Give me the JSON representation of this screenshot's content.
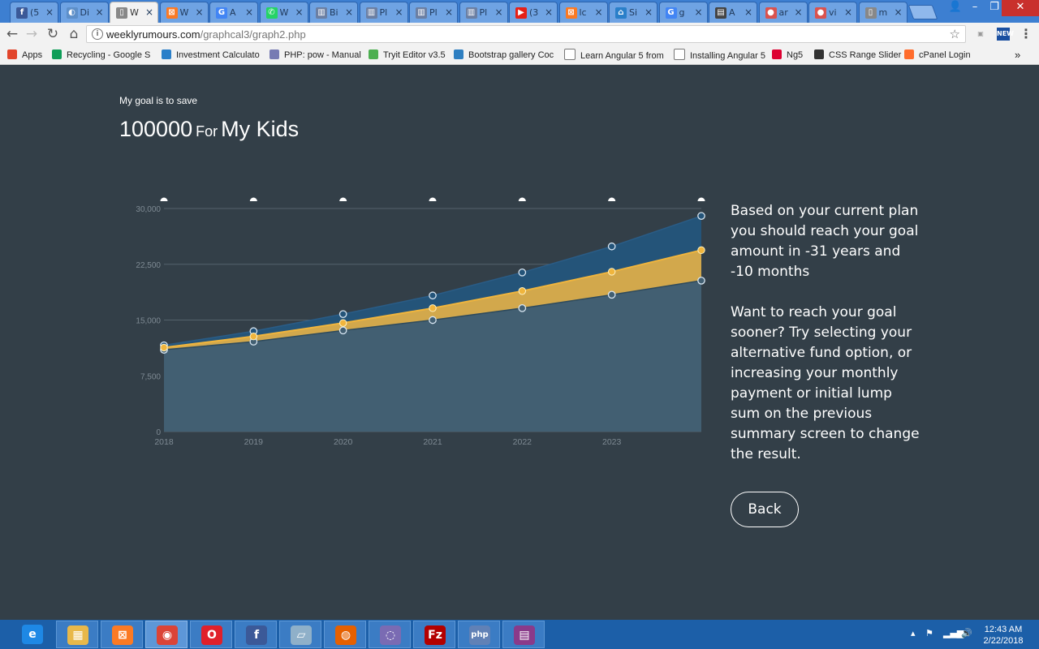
{
  "browser": {
    "tabs": [
      {
        "icon": "facebook-icon",
        "title": "(5",
        "color": "#3b5998",
        "glyph": "f"
      },
      {
        "icon": "globe-icon",
        "title": "Di",
        "color": "#5d8fc9",
        "glyph": "◐"
      },
      {
        "icon": "document-icon",
        "title": "W",
        "color": "#888888",
        "glyph": "▯",
        "active": true
      },
      {
        "icon": "xampp-icon",
        "title": "W",
        "color": "#fb7a24",
        "glyph": "⊠"
      },
      {
        "icon": "google-icon",
        "title": "A",
        "color": "#4285f4",
        "glyph": "G"
      },
      {
        "icon": "whatsapp-icon",
        "title": "W",
        "color": "#25d366",
        "glyph": "✆"
      },
      {
        "icon": "chart-icon",
        "title": "Bi",
        "color": "#6b7fa3",
        "glyph": "▥"
      },
      {
        "icon": "chart-icon",
        "title": "Pl",
        "color": "#6b7fa3",
        "glyph": "▥"
      },
      {
        "icon": "chart-icon",
        "title": "Pl",
        "color": "#6b7fa3",
        "glyph": "▥"
      },
      {
        "icon": "chart-icon",
        "title": "Pl",
        "color": "#6b7fa3",
        "glyph": "▥"
      },
      {
        "icon": "youtube-icon",
        "title": "(3",
        "color": "#e62117",
        "glyph": "▶"
      },
      {
        "icon": "xampp-icon",
        "title": "lc",
        "color": "#fb7a24",
        "glyph": "⊠"
      },
      {
        "icon": "home-icon",
        "title": "Si",
        "color": "#2a7fc9",
        "glyph": "⌂"
      },
      {
        "icon": "google-icon",
        "title": "g",
        "color": "#4285f4",
        "glyph": "G"
      },
      {
        "icon": "book-icon",
        "title": "A",
        "color": "#444444",
        "glyph": "▤"
      },
      {
        "icon": "circle-icon",
        "title": "ar",
        "color": "#d9534f",
        "glyph": "●"
      },
      {
        "icon": "circle-icon",
        "title": "vi",
        "color": "#d9534f",
        "glyph": "●"
      },
      {
        "icon": "document-icon",
        "title": "m",
        "color": "#888888",
        "glyph": "▯"
      }
    ],
    "url_host": "weeklyrumours.com",
    "url_path": "/graphcal3/graph2.php",
    "bookmarks": [
      {
        "label": "Apps",
        "icon": "apps-icon",
        "color": "#e2452b"
      },
      {
        "label": "Recycling - Google S",
        "icon": "sheets-icon",
        "color": "#0f9d58"
      },
      {
        "label": "Investment Calculato",
        "icon": "home-icon",
        "color": "#2a7fc9"
      },
      {
        "label": "PHP: pow - Manual",
        "icon": "php-icon",
        "color": "#777bb3"
      },
      {
        "label": "Tryit Editor v3.5",
        "icon": "w3-icon",
        "color": "#4caf50"
      },
      {
        "label": "Bootstrap gallery Coc",
        "icon": "bootstrap-icon",
        "color": "#2f7fc1"
      },
      {
        "label": "Learn Angular 5 from",
        "icon": "document-icon",
        "color": "#ffffff"
      },
      {
        "label": "Installing Angular 5",
        "icon": "document-icon",
        "color": "#ffffff"
      },
      {
        "label": "Ng5",
        "icon": "angular-icon",
        "color": "#dd0031"
      },
      {
        "label": "CSS Range Slider",
        "icon": "codepen-icon",
        "color": "#333333"
      },
      {
        "label": "cPanel Login",
        "icon": "cpanel-icon",
        "color": "#ff6c2c"
      }
    ],
    "bookmarks_overflow": "»"
  },
  "goal": {
    "intro": "My goal is to save",
    "amount": "100000",
    "for_word": "For",
    "name": "My Kids"
  },
  "chart_data": {
    "type": "area",
    "x": [
      "2018",
      "2019",
      "2020",
      "2021",
      "2022",
      "2023",
      "2024"
    ],
    "x_tick_labels": [
      "2018",
      "2019",
      "2020",
      "2021",
      "2022",
      "2023"
    ],
    "y_ticks": [
      0,
      7500,
      15000,
      22500,
      30000
    ],
    "y_tick_labels": [
      "0",
      "7,500",
      "15,000",
      "22,500",
      "30,000"
    ],
    "ylim": [
      0,
      30000
    ],
    "title": "",
    "xlabel": "",
    "ylabel": "",
    "series": [
      {
        "color": "#245479",
        "values": [
          11600,
          13500,
          15800,
          18300,
          21400,
          24900,
          29000
        ]
      },
      {
        "color": "#d2a84c",
        "marker": "#f0b53d",
        "values": [
          11300,
          12800,
          14600,
          16600,
          18900,
          21500,
          24400
        ]
      },
      {
        "color": "#425f72",
        "values": [
          11000,
          12100,
          13600,
          15000,
          16600,
          18400,
          20300
        ]
      }
    ],
    "grid": true,
    "legend": "none"
  },
  "message": {
    "line1": "Based on your current plan you should reach your goal amount in -31 years and -10 months",
    "line2": "Want to reach your goal sooner? Try selecting your alternative fund option, or increasing your monthly payment or initial lump sum on the previous summary screen to change the result."
  },
  "back_label": "Back",
  "taskbar": {
    "apps": [
      {
        "icon": "ie-icon",
        "color": "#1e88e5",
        "glyph": "e"
      },
      {
        "icon": "file-explorer-icon",
        "color": "#e8b84a",
        "glyph": "▦"
      },
      {
        "icon": "xampp-icon",
        "color": "#fb7a24",
        "glyph": "⊠"
      },
      {
        "icon": "chrome-icon",
        "color": "#db4437",
        "glyph": "◉"
      },
      {
        "icon": "opera-icon",
        "color": "#e0202a",
        "glyph": "O"
      },
      {
        "icon": "facebook-icon",
        "color": "#3b5998",
        "glyph": "f"
      },
      {
        "icon": "notepad-icon",
        "color": "#8fb0c9",
        "glyph": "▱"
      },
      {
        "icon": "firefox-icon",
        "color": "#e66000",
        "glyph": "◍"
      },
      {
        "icon": "download-manager-icon",
        "color": "#7a6bb3",
        "glyph": "◌"
      },
      {
        "icon": "filezilla-icon",
        "color": "#b30000",
        "glyph": "Fz"
      },
      {
        "icon": "php-icon",
        "color": "#6181b6",
        "glyph": "php"
      },
      {
        "icon": "winrar-icon",
        "color": "#8a3a8a",
        "glyph": "▤"
      }
    ],
    "time": "12:43 AM",
    "date": "2/22/2018"
  }
}
